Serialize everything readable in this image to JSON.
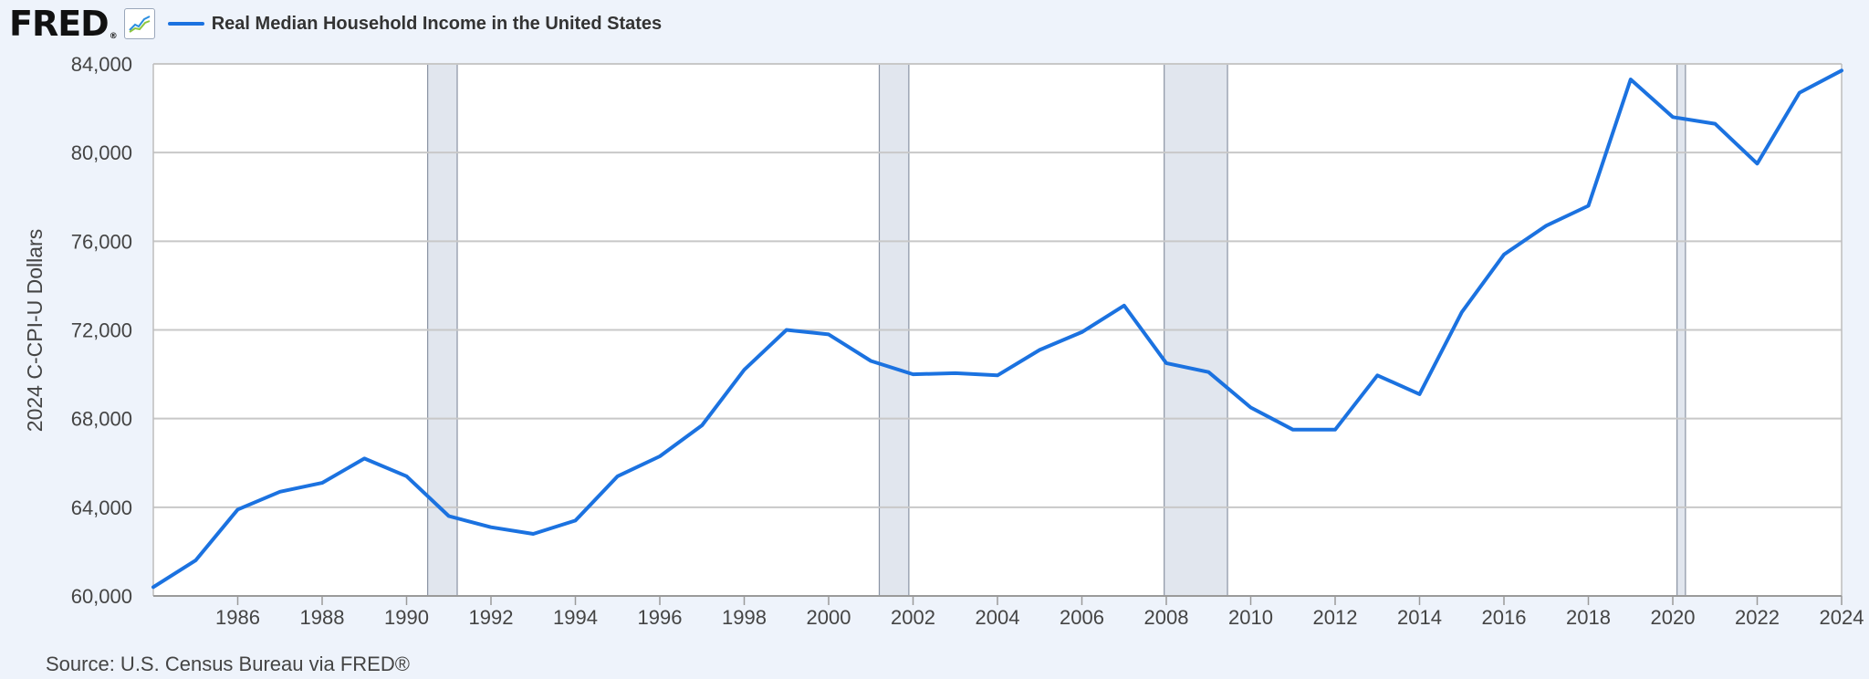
{
  "brand": {
    "logo_text": "FRED",
    "registered": "®",
    "icon": "line-graph-icon"
  },
  "colors": {
    "series": "#1b72e0",
    "recession": "#e1e6ee",
    "grid": "#c8c8c8",
    "background": "#eef3fb"
  },
  "source": "Source: U.S. Census Bureau via FRED®",
  "chart_data": {
    "type": "line",
    "title": "",
    "xlabel": "",
    "ylabel": "2024 C-CPI-U Dollars",
    "xlim": [
      1984,
      2024
    ],
    "ylim": [
      60000,
      84000
    ],
    "y_ticks": [
      60000,
      64000,
      68000,
      72000,
      76000,
      80000,
      84000
    ],
    "y_tick_labels": [
      "60,000",
      "64,000",
      "68,000",
      "72,000",
      "76,000",
      "80,000",
      "84,000"
    ],
    "x_ticks": [
      1986,
      1988,
      1990,
      1992,
      1994,
      1996,
      1998,
      2000,
      2002,
      2004,
      2006,
      2008,
      2010,
      2012,
      2014,
      2016,
      2018,
      2020,
      2022,
      2024
    ],
    "x_tick_labels": [
      "1986",
      "1988",
      "1990",
      "1992",
      "1994",
      "1996",
      "1998",
      "2000",
      "2002",
      "2004",
      "2006",
      "2008",
      "2010",
      "2012",
      "2014",
      "2016",
      "2018",
      "2020",
      "2022",
      "2024"
    ],
    "grid": true,
    "legend": "top-left",
    "recessions": [
      [
        1990.5,
        1991.2
      ],
      [
        2001.2,
        2001.9
      ],
      [
        2007.95,
        2009.45
      ],
      [
        2020.1,
        2020.3
      ]
    ],
    "series": [
      {
        "name": "Real Median Household Income in the United States",
        "x": [
          1984,
          1985,
          1986,
          1987,
          1988,
          1989,
          1990,
          1991,
          1992,
          1993,
          1994,
          1995,
          1996,
          1997,
          1998,
          1999,
          2000,
          2001,
          2002,
          2003,
          2004,
          2005,
          2006,
          2007,
          2008,
          2009,
          2010,
          2011,
          2012,
          2013,
          2014,
          2015,
          2016,
          2017,
          2018,
          2019,
          2020,
          2021,
          2022,
          2023,
          2024
        ],
        "values": [
          60400,
          61600,
          63900,
          64700,
          65100,
          66200,
          65400,
          63600,
          63100,
          62800,
          63400,
          65400,
          66300,
          67700,
          70200,
          72000,
          71800,
          70600,
          70000,
          70050,
          69950,
          71100,
          71900,
          73100,
          70500,
          70100,
          68500,
          67500,
          67500,
          69950,
          69100,
          72800,
          75400,
          76700,
          77600,
          83300,
          81600,
          81300,
          79500,
          82700,
          83700
        ]
      }
    ]
  }
}
